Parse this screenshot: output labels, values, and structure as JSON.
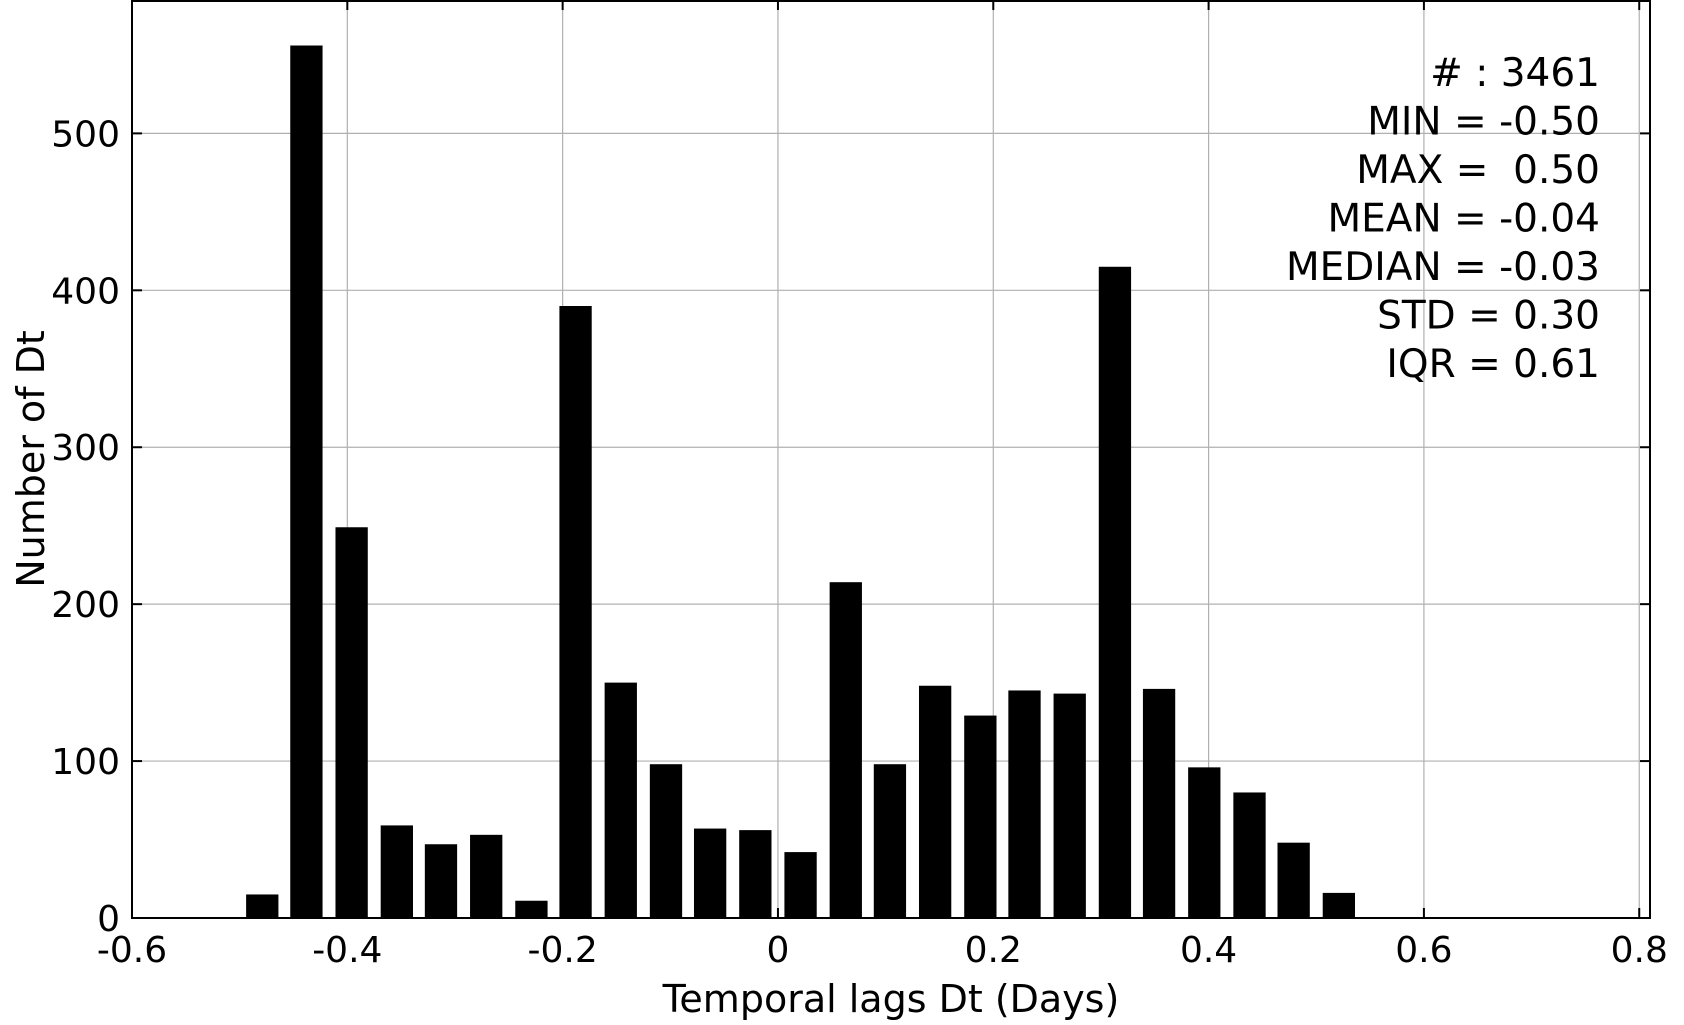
{
  "chart_data": {
    "type": "bar",
    "xlabel": "Temporal lags Dt (Days)",
    "ylabel": "Number of Dt",
    "xlim": [
      -0.6,
      0.81
    ],
    "ylim": [
      0,
      585
    ],
    "xticks": [
      -0.6,
      -0.4,
      -0.2,
      0,
      0.2,
      0.4,
      0.6,
      0.8
    ],
    "xtick_labels": [
      "-0.6",
      "-0.4",
      "-0.2",
      "0",
      "0.2",
      "0.4",
      "0.6",
      "0.8"
    ],
    "yticks": [
      0,
      100,
      200,
      300,
      400,
      500
    ],
    "ytick_labels": [
      "0",
      "100",
      "200",
      "300",
      "400",
      "500"
    ],
    "grid": true,
    "bar_color": "#000000",
    "bar_width_days": 0.03,
    "bars": [
      {
        "x": -0.479,
        "value": 15
      },
      {
        "x": -0.438,
        "value": 556
      },
      {
        "x": -0.396,
        "value": 249
      },
      {
        "x": -0.354,
        "value": 59
      },
      {
        "x": -0.313,
        "value": 47
      },
      {
        "x": -0.271,
        "value": 53
      },
      {
        "x": -0.229,
        "value": 11
      },
      {
        "x": -0.188,
        "value": 390
      },
      {
        "x": -0.146,
        "value": 150
      },
      {
        "x": -0.104,
        "value": 98
      },
      {
        "x": -0.063,
        "value": 57
      },
      {
        "x": -0.021,
        "value": 56
      },
      {
        "x": 0.021,
        "value": 42
      },
      {
        "x": 0.063,
        "value": 214
      },
      {
        "x": 0.104,
        "value": 98
      },
      {
        "x": 0.146,
        "value": 148
      },
      {
        "x": 0.188,
        "value": 129
      },
      {
        "x": 0.229,
        "value": 145
      },
      {
        "x": 0.271,
        "value": 143
      },
      {
        "x": 0.313,
        "value": 415
      },
      {
        "x": 0.354,
        "value": 146
      },
      {
        "x": 0.396,
        "value": 96
      },
      {
        "x": 0.438,
        "value": 80
      },
      {
        "x": 0.479,
        "value": 48
      },
      {
        "x": 0.521,
        "value": 16
      }
    ],
    "stats_placement": "top-right",
    "stats": [
      "# : 3461",
      "MIN = -0.50",
      "MAX =  0.50",
      "MEAN = -0.04",
      "MEDIAN = -0.03",
      "STD = 0.30",
      "IQR = 0.61"
    ]
  }
}
